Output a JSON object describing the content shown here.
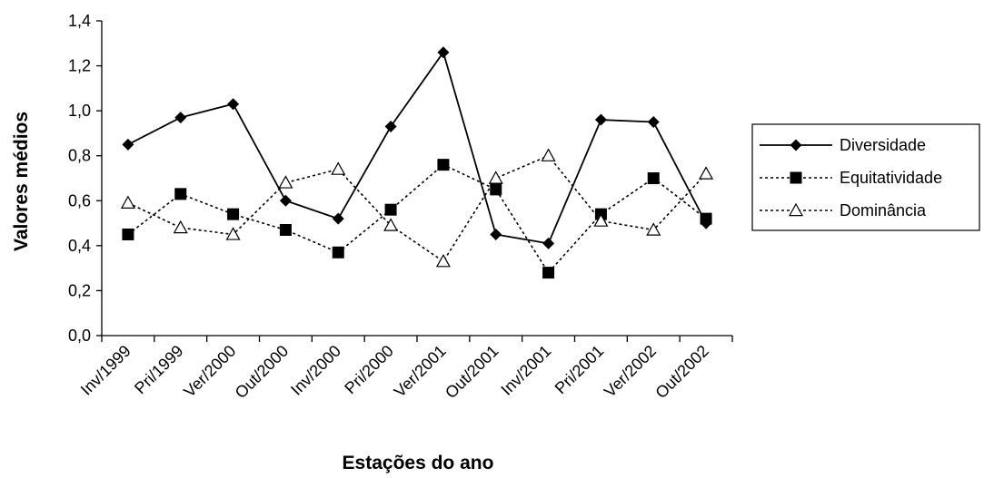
{
  "chart_data": {
    "type": "line",
    "title": "",
    "xlabel": "Estações do ano",
    "ylabel": "Valores médios",
    "ylim": [
      0,
      1.4
    ],
    "yticks": [
      "0,0",
      "0,2",
      "0,4",
      "0,6",
      "0,8",
      "1,0",
      "1,2",
      "1,4"
    ],
    "categories": [
      "Inv/1999",
      "Pri/1999",
      "Ver/2000",
      "Out/2000",
      "Inv/2000",
      "Pri/2000",
      "Ver/2001",
      "Out/2001",
      "Inv/2001",
      "Pri/2001",
      "Ver/2002",
      "Out/2002"
    ],
    "grid": false,
    "legend_position": "right",
    "series": [
      {
        "name": "Diversidade",
        "marker": "diamond",
        "line": "solid",
        "values": [
          0.85,
          0.97,
          1.03,
          0.6,
          0.52,
          0.93,
          1.26,
          0.45,
          0.41,
          0.96,
          0.95,
          0.5
        ]
      },
      {
        "name": "Equitatividade",
        "marker": "square",
        "line": "dashed",
        "values": [
          0.45,
          0.63,
          0.54,
          0.47,
          0.37,
          0.56,
          0.76,
          0.65,
          0.28,
          0.54,
          0.7,
          0.52
        ]
      },
      {
        "name": "Dominância",
        "marker": "triangle-open",
        "line": "dashed",
        "values": [
          0.59,
          0.48,
          0.45,
          0.68,
          0.74,
          0.49,
          0.33,
          0.7,
          0.8,
          0.51,
          0.47,
          0.72
        ]
      }
    ]
  }
}
